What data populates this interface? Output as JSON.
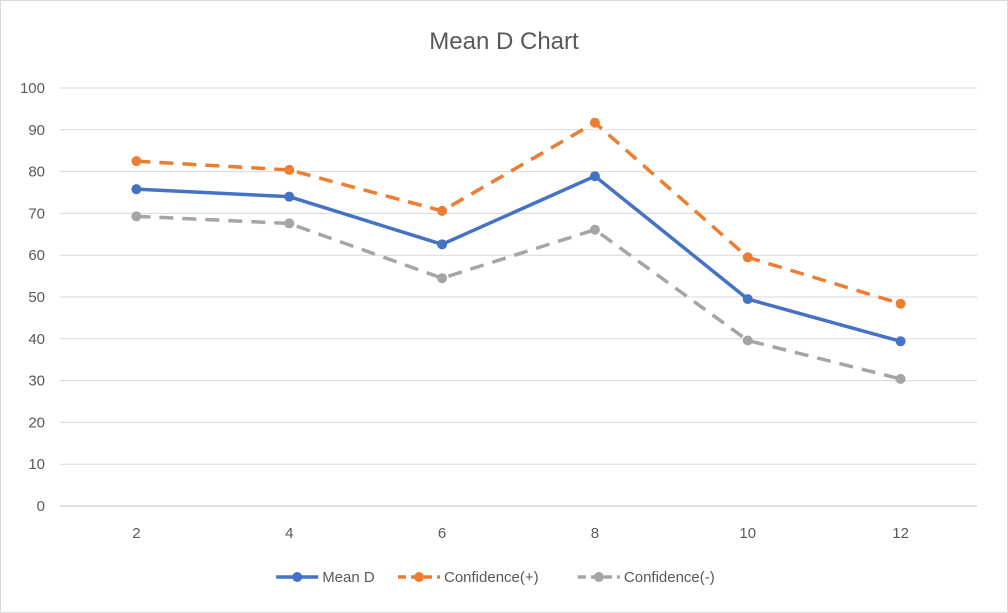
{
  "chart_data": {
    "type": "line",
    "title": "Mean D Chart",
    "xlabel": "",
    "ylabel": "",
    "x": [
      2,
      4,
      6,
      8,
      10,
      12
    ],
    "xlim": [
      1,
      13
    ],
    "ylim": [
      0,
      100
    ],
    "yticks": [
      0,
      10,
      20,
      30,
      40,
      50,
      60,
      70,
      80,
      90,
      100
    ],
    "grid": "horizontal",
    "legend_position": "bottom",
    "series": [
      {
        "name": "Mean D",
        "values": [
          75.8,
          74.0,
          62.6,
          78.9,
          49.5,
          39.4
        ],
        "color": "#4472c4",
        "dash": "solid"
      },
      {
        "name": "Confidence(+)",
        "values": [
          82.5,
          80.4,
          70.6,
          91.7,
          59.5,
          48.4
        ],
        "color": "#ed7d31",
        "dash": "dashed"
      },
      {
        "name": "Confidence(-)",
        "values": [
          69.3,
          67.6,
          54.5,
          66.1,
          39.6,
          30.4
        ],
        "color": "#a5a5a5",
        "dash": "dashed"
      }
    ]
  }
}
